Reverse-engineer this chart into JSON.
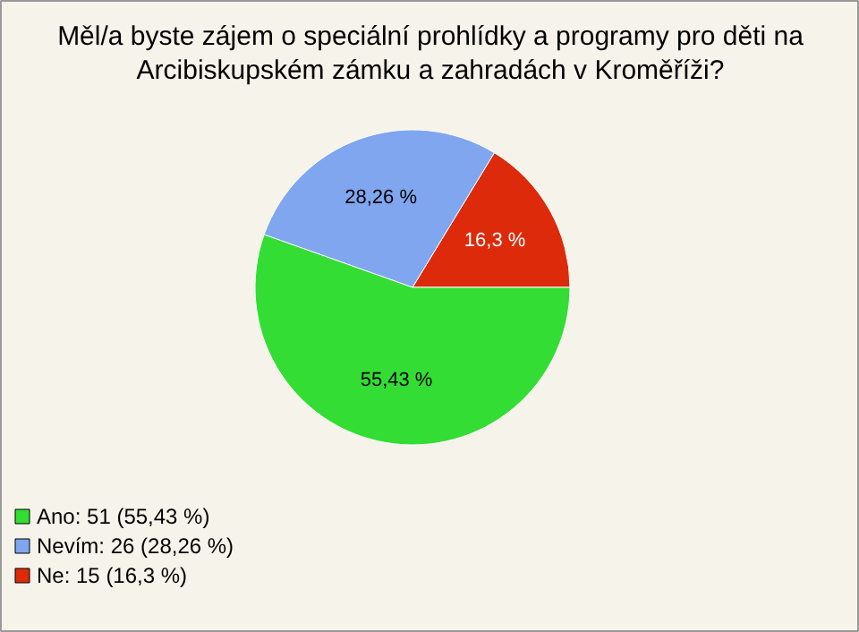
{
  "chart_data": {
    "type": "pie",
    "title": "Měl/a byste zájem o speciální prohlídky a programy pro děti na\nArcibiskupském zámku a zahradách v Kroměříži?",
    "categories": [
      "Ano: 51 (55,43 %)",
      "Nevím: 26 (28,26 %)",
      "Ne: 15 (16,3 %)"
    ],
    "values": [
      55.43,
      28.26,
      16.3
    ],
    "colors": [
      "#33dd33",
      "#7fa6ee",
      "#dd2a0a"
    ],
    "value_labels": [
      "55,43 %",
      "28,26 %",
      "16,3 %"
    ],
    "legend": "bottom left"
  }
}
